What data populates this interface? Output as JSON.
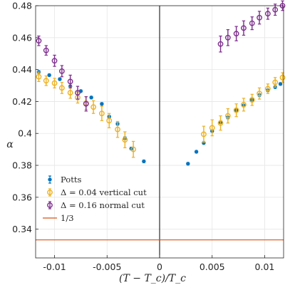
{
  "chart_data": {
    "type": "scatter",
    "xlabel": "(T − T_c)/T_c",
    "ylabel": "α",
    "xlim": [
      -0.0118,
      0.0118
    ],
    "ylim": [
      0.322,
      0.48
    ],
    "grid": true,
    "legend_position": "bottom-left",
    "x_ticks": [
      -0.01,
      -0.005,
      0,
      0.005,
      0.01
    ],
    "x_tick_labels": [
      "-0.01",
      "-0.005",
      "0",
      "0.005",
      "0.01"
    ],
    "y_ticks": [
      0.34,
      0.36,
      0.38,
      0.4,
      0.42,
      0.44,
      0.46,
      0.48
    ],
    "y_tick_labels": [
      "0.34",
      "0.36",
      "0.38",
      "0.4",
      "0.42",
      "0.44",
      "0.46",
      "0.48"
    ],
    "vertical_line_x": 0,
    "series": [
      {
        "name": "Potts",
        "color": "#0072BD",
        "marker": "filled-circle",
        "points": [
          {
            "x": -0.0115,
            "y": 0.4385,
            "err": 0.001
          },
          {
            "x": -0.0105,
            "y": 0.4365,
            "err": 0.001
          },
          {
            "x": -0.0095,
            "y": 0.434,
            "err": 0.001
          },
          {
            "x": -0.0085,
            "y": 0.4295,
            "err": 0.001
          },
          {
            "x": -0.0075,
            "y": 0.4265,
            "err": 0.001
          },
          {
            "x": -0.0065,
            "y": 0.4225,
            "err": 0.001
          },
          {
            "x": -0.0055,
            "y": 0.4185,
            "err": 0.001
          },
          {
            "x": -0.0048,
            "y": 0.4105,
            "err": 0.001
          },
          {
            "x": -0.004,
            "y": 0.406,
            "err": 0.001
          },
          {
            "x": -0.0033,
            "y": 0.397,
            "err": 0.001
          },
          {
            "x": -0.0027,
            "y": 0.3905,
            "err": 0.001
          },
          {
            "x": -0.0015,
            "y": 0.3825,
            "err": 0.001
          },
          {
            "x": 0.0027,
            "y": 0.381,
            "err": 0.001
          },
          {
            "x": 0.0035,
            "y": 0.3885,
            "err": 0.001
          },
          {
            "x": 0.0042,
            "y": 0.394,
            "err": 0.001
          },
          {
            "x": 0.005,
            "y": 0.4015,
            "err": 0.001
          },
          {
            "x": 0.0058,
            "y": 0.407,
            "err": 0.001
          },
          {
            "x": 0.0065,
            "y": 0.41,
            "err": 0.001
          },
          {
            "x": 0.0073,
            "y": 0.4145,
            "err": 0.001
          },
          {
            "x": 0.008,
            "y": 0.4175,
            "err": 0.001
          },
          {
            "x": 0.0088,
            "y": 0.421,
            "err": 0.001
          },
          {
            "x": 0.0095,
            "y": 0.424,
            "err": 0.001
          },
          {
            "x": 0.0103,
            "y": 0.427,
            "err": 0.001
          },
          {
            "x": 0.011,
            "y": 0.429,
            "err": 0.001
          },
          {
            "x": 0.0115,
            "y": 0.431,
            "err": 0.001
          }
        ]
      },
      {
        "name": "Δ = 0.04 vertical cut",
        "color": "#EDB120",
        "marker": "open-circle",
        "points": [
          {
            "x": -0.0115,
            "y": 0.4355,
            "err": 0.003
          },
          {
            "x": -0.0108,
            "y": 0.433,
            "err": 0.003
          },
          {
            "x": -0.01,
            "y": 0.4315,
            "err": 0.003
          },
          {
            "x": -0.0093,
            "y": 0.4285,
            "err": 0.0035
          },
          {
            "x": -0.0085,
            "y": 0.4255,
            "err": 0.0035
          },
          {
            "x": -0.0078,
            "y": 0.4225,
            "err": 0.0035
          },
          {
            "x": -0.007,
            "y": 0.419,
            "err": 0.004
          },
          {
            "x": -0.0063,
            "y": 0.4165,
            "err": 0.004
          },
          {
            "x": -0.0055,
            "y": 0.4125,
            "err": 0.0045
          },
          {
            "x": -0.0048,
            "y": 0.408,
            "err": 0.0045
          },
          {
            "x": -0.004,
            "y": 0.4025,
            "err": 0.005
          },
          {
            "x": -0.0033,
            "y": 0.396,
            "err": 0.005
          },
          {
            "x": -0.0025,
            "y": 0.39,
            "err": 0.005
          },
          {
            "x": 0.0042,
            "y": 0.3995,
            "err": 0.005
          },
          {
            "x": 0.005,
            "y": 0.4035,
            "err": 0.005
          },
          {
            "x": 0.0058,
            "y": 0.4065,
            "err": 0.0045
          },
          {
            "x": 0.0065,
            "y": 0.411,
            "err": 0.0045
          },
          {
            "x": 0.0073,
            "y": 0.4145,
            "err": 0.004
          },
          {
            "x": 0.008,
            "y": 0.418,
            "err": 0.004
          },
          {
            "x": 0.0088,
            "y": 0.421,
            "err": 0.0035
          },
          {
            "x": 0.0095,
            "y": 0.425,
            "err": 0.0035
          },
          {
            "x": 0.0103,
            "y": 0.428,
            "err": 0.003
          },
          {
            "x": 0.011,
            "y": 0.432,
            "err": 0.003
          },
          {
            "x": 0.0117,
            "y": 0.435,
            "err": 0.003
          }
        ]
      },
      {
        "name": "Δ = 0.16 normal cut",
        "color": "#7E2F8E",
        "marker": "open-circle",
        "points": [
          {
            "x": -0.0115,
            "y": 0.458,
            "err": 0.003
          },
          {
            "x": -0.0108,
            "y": 0.452,
            "err": 0.003
          },
          {
            "x": -0.01,
            "y": 0.4455,
            "err": 0.0035
          },
          {
            "x": -0.0093,
            "y": 0.439,
            "err": 0.0035
          },
          {
            "x": -0.0085,
            "y": 0.4325,
            "err": 0.004
          },
          {
            "x": -0.0078,
            "y": 0.4255,
            "err": 0.004
          },
          {
            "x": -0.007,
            "y": 0.4185,
            "err": 0.0045
          },
          {
            "x": 0.0058,
            "y": 0.456,
            "err": 0.005
          },
          {
            "x": 0.0065,
            "y": 0.46,
            "err": 0.005
          },
          {
            "x": 0.0073,
            "y": 0.4625,
            "err": 0.0045
          },
          {
            "x": 0.008,
            "y": 0.466,
            "err": 0.0045
          },
          {
            "x": 0.0088,
            "y": 0.469,
            "err": 0.004
          },
          {
            "x": 0.0095,
            "y": 0.4725,
            "err": 0.004
          },
          {
            "x": 0.0103,
            "y": 0.475,
            "err": 0.0035
          },
          {
            "x": 0.011,
            "y": 0.4775,
            "err": 0.0035
          },
          {
            "x": 0.0117,
            "y": 0.48,
            "err": 0.003
          }
        ]
      },
      {
        "name": "1/3",
        "color": "#D95319",
        "marker": "line",
        "constant_y": 0.3333
      }
    ]
  }
}
